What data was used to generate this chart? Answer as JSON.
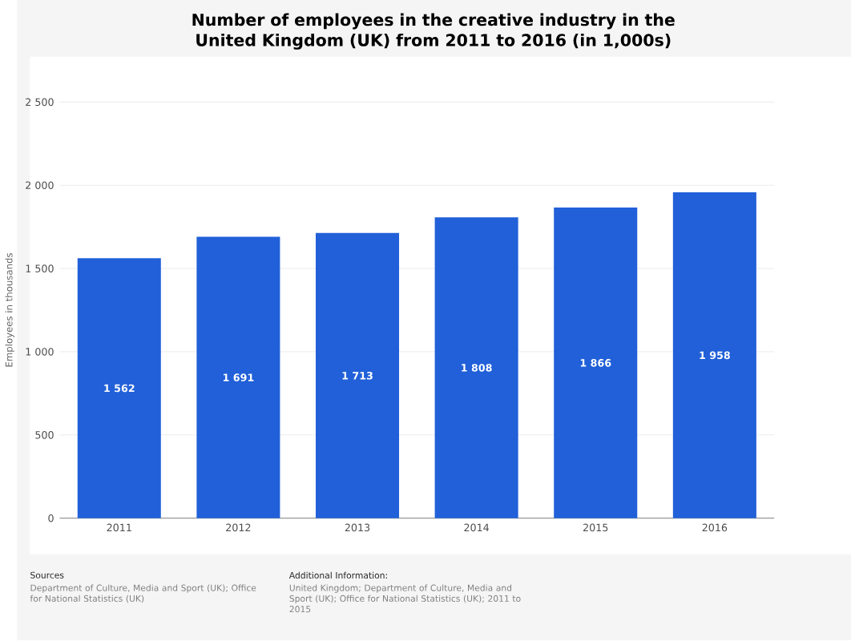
{
  "chart_data": {
    "type": "bar",
    "title": "Number of employees in the creative industry in the United Kingdom (UK) from 2011 to 2016 (in 1,000s)",
    "ylabel": "Employees in thousands",
    "categories": [
      "2011",
      "2012",
      "2013",
      "2014",
      "2015",
      "2016"
    ],
    "values": [
      1562,
      1691,
      1713,
      1808,
      1866,
      1958
    ],
    "value_labels": [
      "1 562",
      "1 691",
      "1 713",
      "1 808",
      "1 866",
      "1 958"
    ],
    "color": "#2160d8",
    "ylim": [
      0,
      2500
    ],
    "yticks": [
      0,
      500,
      {
        "value": 1000,
        "label": "1 000"
      },
      {
        "value": 1500,
        "label": "1 500"
      },
      {
        "value": 2000,
        "label": "2 000"
      },
      {
        "value": 2500,
        "label": "2 500"
      }
    ],
    "grid": "y",
    "annotations": [
      "Sources",
      "Department of Culture, Media and Sport (UK); Office for National Statistics (UK)",
      "Additional Information:",
      "United Kingdom; Department of Culture, Media and Sport (UK); Office for National Statistics (UK); 2011 to 2015"
    ]
  }
}
